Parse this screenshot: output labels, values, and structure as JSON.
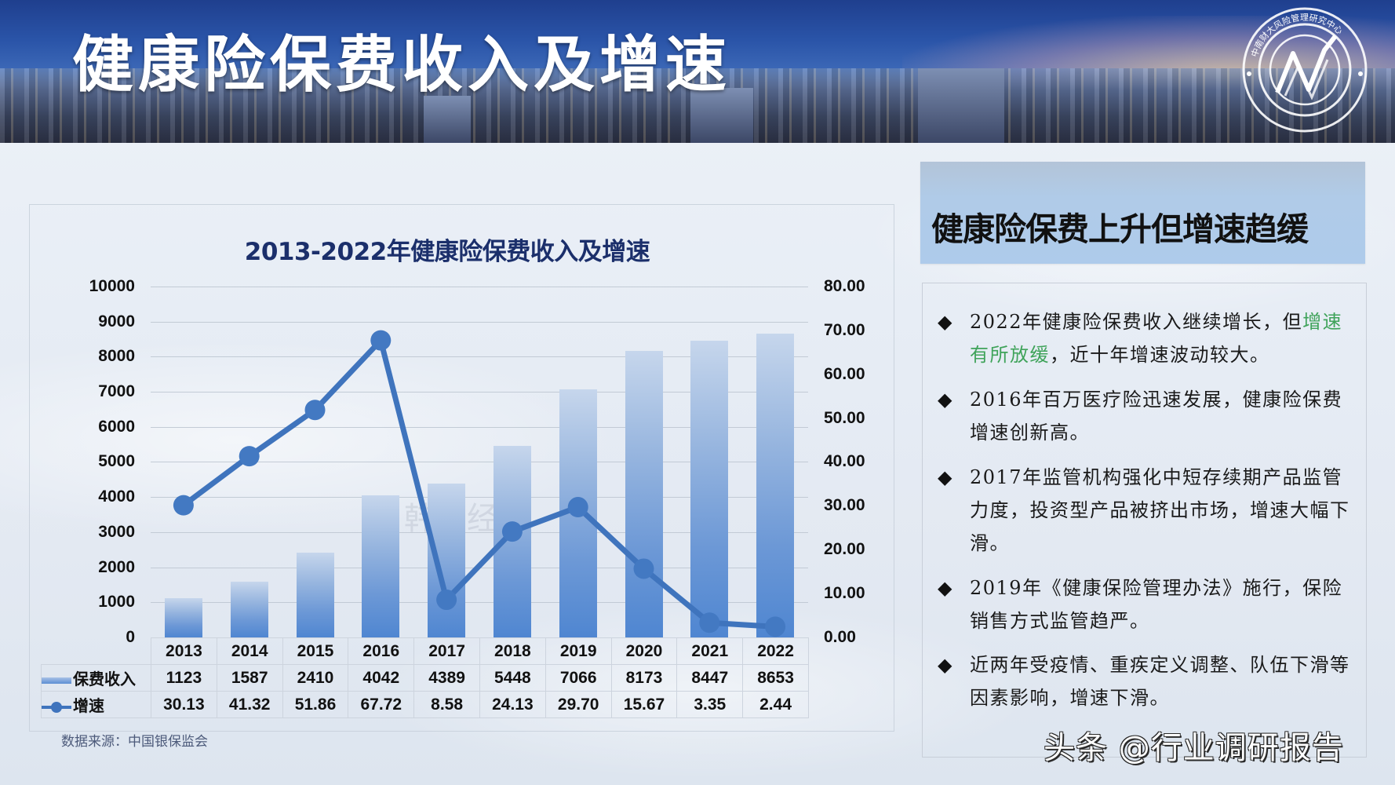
{
  "header": {
    "title": "健康险保费收入及增速",
    "logo_icon": "research-center-logo-icon"
  },
  "chart": {
    "title": "2013-2022年健康险保费收入及增速",
    "source": "数据来源：中国银保监会",
    "left_axis_ticks": [
      "10000",
      "9000",
      "8000",
      "7000",
      "6000",
      "5000",
      "4000",
      "3000",
      "2000",
      "1000",
      "0"
    ],
    "right_axis_ticks": [
      "80.00",
      "70.00",
      "60.00",
      "50.00",
      "40.00",
      "30.00",
      "20.00",
      "10.00",
      "0.00"
    ],
    "legend": {
      "premium": "保费收入",
      "growth": "增速"
    },
    "years": [
      "2013",
      "2014",
      "2015",
      "2016",
      "2017",
      "2018",
      "2019",
      "2020",
      "2021",
      "2022"
    ],
    "premium_values": [
      "1123",
      "1587",
      "2410",
      "4042",
      "4389",
      "5448",
      "7066",
      "8173",
      "8447",
      "8653"
    ],
    "growth_values": [
      "30.13",
      "41.32",
      "51.86",
      "67.72",
      "8.58",
      "24.13",
      "29.70",
      "15.67",
      "3.35",
      "2.44"
    ],
    "faint_watermark": "韩经"
  },
  "chart_data": {
    "type": "bar",
    "title": "2013-2022年健康险保费收入及增速",
    "categories": [
      "2013",
      "2014",
      "2015",
      "2016",
      "2017",
      "2018",
      "2019",
      "2020",
      "2021",
      "2022"
    ],
    "series": [
      {
        "name": "保费收入",
        "type": "bar",
        "axis": "left",
        "values": [
          1123,
          1587,
          2410,
          4042,
          4389,
          5448,
          7066,
          8173,
          8447,
          8653
        ]
      },
      {
        "name": "增速",
        "type": "line",
        "axis": "right",
        "values": [
          30.13,
          41.32,
          51.86,
          67.72,
          8.58,
          24.13,
          29.7,
          15.67,
          3.35,
          2.44
        ]
      }
    ],
    "xlabel": "",
    "ylabel": "",
    "ylim": [
      0,
      10000
    ],
    "y2lim": [
      0,
      80
    ],
    "y_ticks": [
      0,
      1000,
      2000,
      3000,
      4000,
      5000,
      6000,
      7000,
      8000,
      9000,
      10000
    ],
    "y2_ticks": [
      0,
      10,
      20,
      30,
      40,
      50,
      60,
      70,
      80
    ],
    "grid": true,
    "legend_position": "data-table",
    "colors": {
      "bar": "#4f86d1",
      "line": "#3f74bd"
    },
    "source": "数据来源：中国银保监会"
  },
  "summary": {
    "heading": "健康险保费上升但增速趋缓",
    "bullet_icon": "◆",
    "points": [
      {
        "before": "2022年健康险保费收入继续增长，但",
        "highlight": "增速有所放缓",
        "after": "，近十年增速波动较大。"
      },
      {
        "before": "2016年百万医疗险迅速发展，健康险保费增速创新高。",
        "highlight": "",
        "after": ""
      },
      {
        "before": "2017年监管机构强化中短存续期产品监管力度，投资型产品被挤出市场，增速大幅下滑。",
        "highlight": "",
        "after": ""
      },
      {
        "before": "2019年《健康保险管理办法》施行，保险销售方式监管趋严。",
        "highlight": "",
        "after": ""
      },
      {
        "before": "近两年受疫情、重疾定义调整、队伍下滑等因素影响，增速下滑。",
        "highlight": "",
        "after": ""
      }
    ],
    "highlight_color": "#3fa35a"
  },
  "watermark": "头条 @行业调研报告"
}
